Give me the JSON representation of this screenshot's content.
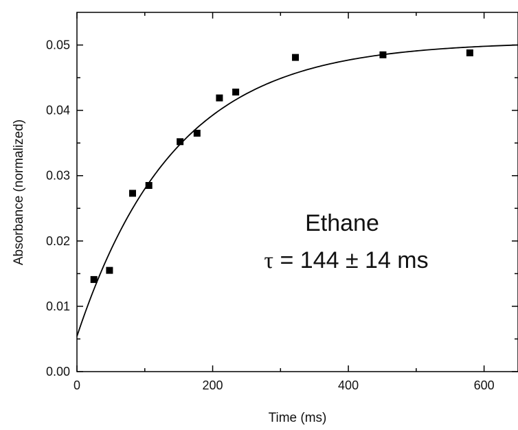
{
  "chart_data": {
    "type": "scatter",
    "xlabel": "Time (ms)",
    "ylabel": "Absorbance (normalized)",
    "xlim": [
      0,
      650
    ],
    "ylim": [
      0,
      0.055
    ],
    "x_ticks": [
      "0",
      "200",
      "400",
      "600"
    ],
    "y_ticks": [
      "0.00",
      "0.01",
      "0.02",
      "0.03",
      "0.04",
      "0.05"
    ],
    "grid": false,
    "legend": "none",
    "annotation": {
      "title": "Ethane",
      "tau_symbol": "τ",
      "tau_value": " = 144 ± 14 ms"
    },
    "series": [
      {
        "kind": "points",
        "marker": "square",
        "color": "#000000",
        "x": [
          25,
          48,
          82,
          106,
          152,
          177,
          210,
          234,
          322,
          451,
          579
        ],
        "y": [
          0.0141,
          0.0155,
          0.0273,
          0.0285,
          0.0352,
          0.0365,
          0.0419,
          0.0428,
          0.0481,
          0.0485,
          0.0488
        ]
      },
      {
        "kind": "fit",
        "model": "exponential rise",
        "y0": 0.0054,
        "ymax": 0.0505,
        "tau": 144,
        "color": "#000000"
      }
    ]
  }
}
